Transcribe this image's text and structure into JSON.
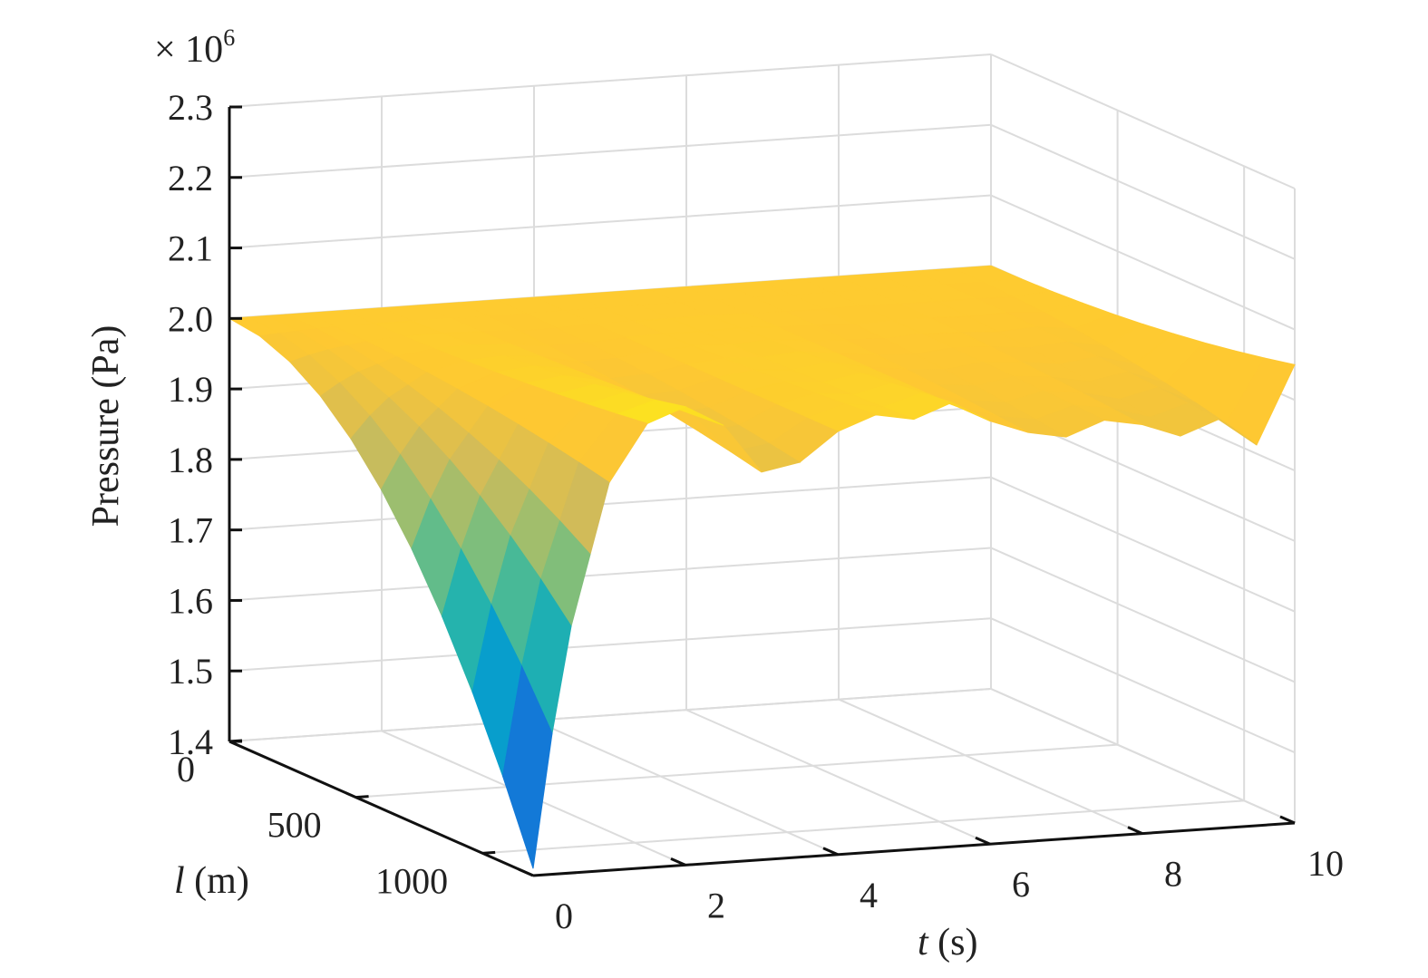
{
  "chart_data": {
    "type": "surface",
    "zlabel": "Pressure (Pa)",
    "x_axis": {
      "var": "l",
      "unit": " (m)",
      "ticks": [
        "0",
        "500",
        "1000"
      ],
      "range": [
        0,
        1200
      ]
    },
    "y_axis": {
      "var": "t",
      "unit": " (s)",
      "ticks": [
        "0",
        "2",
        "4",
        "6",
        "8",
        "10"
      ],
      "range": [
        0,
        10
      ]
    },
    "z_axis": {
      "ticks": [
        "1.4",
        "1.5",
        "1.6",
        "1.7",
        "1.8",
        "1.9",
        "2.0",
        "2.1",
        "2.2",
        "2.3"
      ],
      "exponent_base": "× 10",
      "exponent": "6",
      "range": [
        1.4,
        2.3
      ]
    },
    "colormap": [
      "#352a87",
      "#0f5cdd",
      "#1481d6",
      "#06a4ca",
      "#2eb7a4",
      "#87bf77",
      "#d1bb59",
      "#fec832",
      "#f9fb0e"
    ],
    "grid": true,
    "surface_profiles": {
      "l_fraction": [
        0,
        0.1,
        0.2,
        0.3,
        0.4,
        0.5,
        0.6,
        0.7,
        0.8,
        0.9,
        1.0
      ],
      "t": [
        0.0,
        0.25,
        0.5,
        0.75,
        1.0,
        1.5,
        2.0,
        2.5,
        3.0,
        3.5,
        4.0,
        4.5,
        5.0,
        5.5,
        6.0,
        6.5,
        7.0,
        7.5,
        8.0,
        8.5,
        9.0,
        9.5,
        10.0
      ],
      "pressure_at_l_0": [
        2.0,
        2.0,
        2.0,
        2.0,
        2.0,
        2.0,
        2.0,
        2.0,
        2.0,
        2.0,
        2.0,
        2.0,
        2.0,
        2.0,
        2.0,
        2.0,
        2.0,
        2.0,
        2.0,
        2.0,
        2.0,
        2.0,
        2.0
      ],
      "pressure_at_l_max": [
        1.41,
        1.6,
        1.75,
        1.85,
        1.95,
        2.03,
        2.05,
        2.02,
        1.95,
        1.96,
        2.0,
        2.02,
        2.01,
        2.03,
        2.0,
        1.98,
        1.97,
        1.99,
        1.98,
        1.96,
        1.98,
        1.94,
        2.05
      ]
    }
  }
}
